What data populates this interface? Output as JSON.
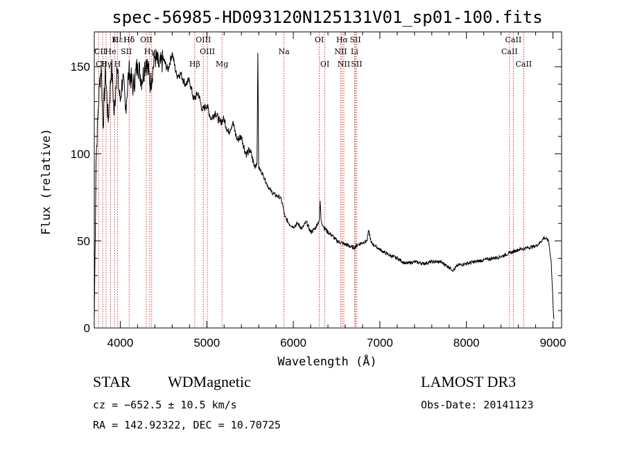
{
  "chart_data": {
    "type": "line",
    "title": "spec-56985-HD093120N125131V01_sp01-100.fits",
    "xlabel": "Wavelength (Å)",
    "ylabel": "Flux (relative)",
    "xlim": [
      3700,
      9100
    ],
    "ylim": [
      0,
      170
    ],
    "xticks": [
      4000,
      5000,
      6000,
      7000,
      8000,
      9000
    ],
    "yticks": [
      0,
      50,
      100,
      150
    ],
    "series": [
      {
        "name": "flux",
        "x": [
          3700,
          3720,
          3740,
          3760,
          3780,
          3800,
          3830,
          3860,
          3900,
          3930,
          3960,
          4000,
          4030,
          4060,
          4100,
          4150,
          4200,
          4250,
          4300,
          4350,
          4400,
          4450,
          4500,
          4550,
          4600,
          4650,
          4700,
          4750,
          4800,
          4850,
          4900,
          4950,
          5000,
          5050,
          5100,
          5150,
          5200,
          5250,
          5300,
          5350,
          5400,
          5450,
          5500,
          5550,
          5580,
          5590,
          5600,
          5650,
          5700,
          5750,
          5800,
          5850,
          5880,
          5900,
          5950,
          6000,
          6050,
          6100,
          6150,
          6200,
          6250,
          6300,
          6310,
          6320,
          6350,
          6400,
          6450,
          6500,
          6550,
          6600,
          6650,
          6700,
          6750,
          6800,
          6850,
          6870,
          6900,
          6950,
          7000,
          7100,
          7200,
          7300,
          7400,
          7500,
          7600,
          7700,
          7800,
          7850,
          7900,
          8000,
          8100,
          8200,
          8300,
          8400,
          8500,
          8600,
          8700,
          8800,
          8850,
          8900,
          8950,
          8980,
          9000,
          9010
        ],
        "y": [
          5,
          95,
          120,
          140,
          150,
          115,
          148,
          118,
          152,
          122,
          150,
          130,
          145,
          125,
          148,
          138,
          152,
          142,
          154,
          140,
          156,
          150,
          154,
          148,
          158,
          145,
          146,
          140,
          142,
          131,
          135,
          125,
          128,
          120,
          124,
          118,
          120,
          112,
          118,
          108,
          110,
          100,
          102,
          93,
          95,
          158,
          92,
          88,
          82,
          78,
          76,
          75,
          70,
          64,
          60,
          58,
          60,
          57,
          61,
          55,
          57,
          62,
          73,
          62,
          58,
          55,
          53,
          50,
          49,
          48,
          47,
          46,
          48,
          49,
          50,
          56,
          49,
          47,
          45,
          42,
          40,
          37,
          38,
          37,
          38,
          38,
          35,
          33,
          36,
          37,
          38,
          39,
          40,
          41,
          43,
          45,
          46,
          47,
          49,
          52,
          50,
          38,
          15,
          5
        ]
      }
    ],
    "line_markers": [
      {
        "label": "Hδ",
        "x": 4102,
        "row": 0
      },
      {
        "label": "K",
        "x": 3934,
        "row": 0
      },
      {
        "label": "Hε",
        "x": 3970,
        "row": 0
      },
      {
        "label": "Hδ",
        "x": 4102,
        "row": 0
      },
      {
        "label": "OII",
        "x": 4300,
        "row": 0
      },
      {
        "label": "OIII",
        "x": 4960,
        "row": 0
      },
      {
        "label": "OI",
        "x": 6300,
        "row": 0
      },
      {
        "label": "Hα",
        "x": 6563,
        "row": 0
      },
      {
        "label": "SII",
        "x": 6717,
        "row": 0
      },
      {
        "label": "CaII",
        "x": 8542,
        "row": 0
      },
      {
        "label": "CII",
        "x": 3768,
        "row": 1
      },
      {
        "label": "He",
        "x": 3888,
        "row": 1
      },
      {
        "label": "SII",
        "x": 4070,
        "row": 1
      },
      {
        "label": "Hγ",
        "x": 4340,
        "row": 1
      },
      {
        "label": "OIII",
        "x": 5007,
        "row": 1
      },
      {
        "label": "Na",
        "x": 5892,
        "row": 1
      },
      {
        "label": "NII",
        "x": 6548,
        "row": 1
      },
      {
        "label": "Li",
        "x": 6707,
        "row": 1
      },
      {
        "label": "CaII",
        "x": 8498,
        "row": 1
      },
      {
        "label": "CII",
        "x": 3785,
        "row": 2
      },
      {
        "label": "Hγ",
        "x": 3835,
        "row": 2
      },
      {
        "label": "H",
        "x": 3968,
        "row": 2
      },
      {
        "label": "G",
        "x": 4305,
        "row": 2
      },
      {
        "label": "Hβ",
        "x": 4861,
        "row": 2
      },
      {
        "label": "Mg",
        "x": 5175,
        "row": 2
      },
      {
        "label": "OI",
        "x": 6364,
        "row": 2
      },
      {
        "label": "NII",
        "x": 6584,
        "row": 2
      },
      {
        "label": "SII",
        "x": 6731,
        "row": 2
      },
      {
        "label": "CaII",
        "x": 8662,
        "row": 2
      }
    ],
    "marker_lines_x": [
      3750,
      3797,
      3835,
      3889,
      3934,
      3970,
      4102,
      4300,
      4340,
      4363,
      4861,
      4959,
      5007,
      5175,
      5892,
      6300,
      6364,
      6548,
      6563,
      6584,
      6707,
      6717,
      6731,
      8498,
      8542,
      8662
    ]
  },
  "info": {
    "class_label": "STAR",
    "subclass": "WDMagnetic",
    "survey": "LAMOST DR3",
    "cz_line": "cz = −652.5 ± 10.5 km/s",
    "obs_date": "Obs-Date: 20141123",
    "coords": "RA = 142.92322, DEC =  10.70725"
  }
}
